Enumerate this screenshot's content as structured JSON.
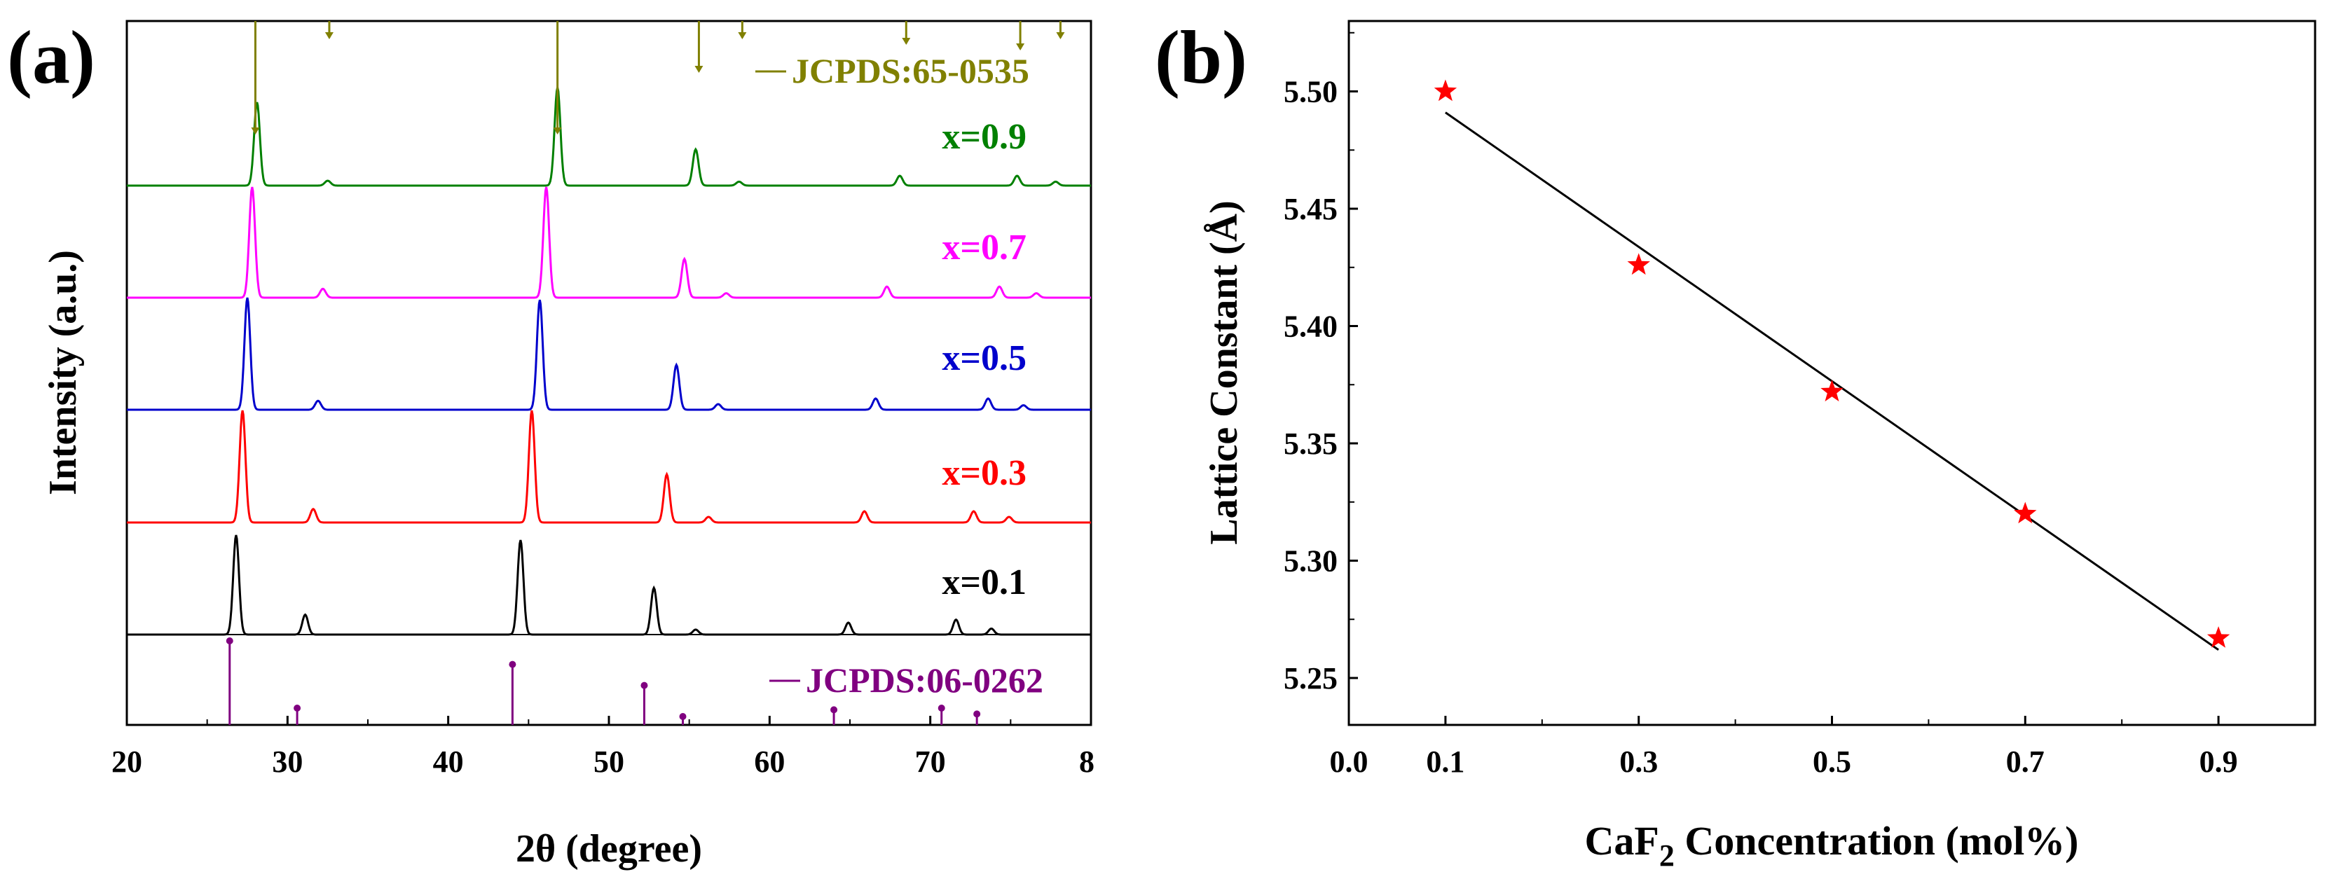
{
  "figure": {
    "panels": [
      {
        "label": "(a)",
        "ylabel": "Intensity (a.u.)",
        "xlabel": "2θ (degree)",
        "xticks": [
          "20",
          "30",
          "40",
          "50",
          "60",
          "70",
          "8"
        ]
      },
      {
        "label": "(b)",
        "ylabel": "Lattice Constant (Å)",
        "xlabel_main": "CaF",
        "xlabel_sub": "2",
        "xlabel_rest": " Concentration (mol%)",
        "xticks": [
          "0.0",
          "0.1",
          "0.3",
          "0.5",
          "0.7",
          "0.9"
        ],
        "yticks": [
          "5.25",
          "5.30",
          "5.35",
          "5.40",
          "5.45",
          "5.50"
        ]
      }
    ]
  },
  "colors": {
    "x0.1": "#000000",
    "x0.3": "#ff0000",
    "x0.5": "#0000cc",
    "x0.7": "#ff00ff",
    "x0.9": "#008000",
    "ref_top": "#808000",
    "ref_bottom": "#800080",
    "stars": "#ff0000",
    "fit": "#000000"
  },
  "chart_data": [
    {
      "type": "line",
      "title": "",
      "xlabel": "2θ (degree)",
      "ylabel": "Intensity (a.u.)",
      "xlim": [
        20,
        80
      ],
      "reference_top": {
        "name": "JCPDS:65-0535",
        "peaks": [
          [
            28.0,
            1.0
          ],
          [
            32.6,
            0.15
          ],
          [
            46.8,
            1.0
          ],
          [
            55.6,
            0.45
          ],
          [
            58.3,
            0.15
          ],
          [
            68.5,
            0.2
          ],
          [
            75.6,
            0.25
          ],
          [
            78.1,
            0.15
          ]
        ]
      },
      "reference_bottom": {
        "name": "JCPDS:06-0262",
        "peaks": [
          [
            26.4,
            1.0
          ],
          [
            30.6,
            0.2
          ],
          [
            44.0,
            0.72
          ],
          [
            52.2,
            0.47
          ],
          [
            54.6,
            0.1
          ],
          [
            64.0,
            0.18
          ],
          [
            70.7,
            0.2
          ],
          [
            72.9,
            0.13
          ]
        ]
      },
      "series": [
        {
          "name": "x=0.1",
          "peaks": [
            [
              26.8,
              1.0
            ],
            [
              31.1,
              0.2
            ],
            [
              44.5,
              0.95
            ],
            [
              52.8,
              0.47
            ],
            [
              55.4,
              0.05
            ],
            [
              64.9,
              0.12
            ],
            [
              71.6,
              0.15
            ],
            [
              73.8,
              0.06
            ]
          ]
        },
        {
          "name": "x=0.3",
          "peaks": [
            [
              27.2,
              1.0
            ],
            [
              31.6,
              0.12
            ],
            [
              45.2,
              1.0
            ],
            [
              53.6,
              0.43
            ],
            [
              56.2,
              0.05
            ],
            [
              65.9,
              0.1
            ],
            [
              72.7,
              0.1
            ],
            [
              74.9,
              0.05
            ]
          ]
        },
        {
          "name": "x=0.5",
          "peaks": [
            [
              27.5,
              1.0
            ],
            [
              31.9,
              0.08
            ],
            [
              45.7,
              0.98
            ],
            [
              54.2,
              0.4
            ],
            [
              56.8,
              0.05
            ],
            [
              66.6,
              0.1
            ],
            [
              73.6,
              0.1
            ],
            [
              75.8,
              0.04
            ]
          ]
        },
        {
          "name": "x=0.7",
          "peaks": [
            [
              27.8,
              1.0
            ],
            [
              32.2,
              0.08
            ],
            [
              46.1,
              1.0
            ],
            [
              54.7,
              0.35
            ],
            [
              57.3,
              0.04
            ],
            [
              67.3,
              0.1
            ],
            [
              74.3,
              0.1
            ],
            [
              76.6,
              0.04
            ]
          ]
        },
        {
          "name": "x=0.9",
          "peaks": [
            [
              28.1,
              0.85
            ],
            [
              32.5,
              0.05
            ],
            [
              46.8,
              1.0
            ],
            [
              55.4,
              0.37
            ],
            [
              58.1,
              0.04
            ],
            [
              68.1,
              0.1
            ],
            [
              75.4,
              0.1
            ],
            [
              77.8,
              0.04
            ]
          ]
        }
      ]
    },
    {
      "type": "scatter",
      "title": "",
      "xlabel": "CaF2 Concentration (mol%)",
      "ylabel": "Lattice Constant (Å)",
      "xlim": [
        0.0,
        1.0
      ],
      "ylim": [
        5.23,
        5.53
      ],
      "x": [
        0.1,
        0.3,
        0.5,
        0.7,
        0.9
      ],
      "y": [
        5.5,
        5.426,
        5.372,
        5.32,
        5.267
      ],
      "fit": {
        "x": [
          0.1,
          0.9
        ],
        "y": [
          5.491,
          5.262
        ]
      }
    }
  ]
}
